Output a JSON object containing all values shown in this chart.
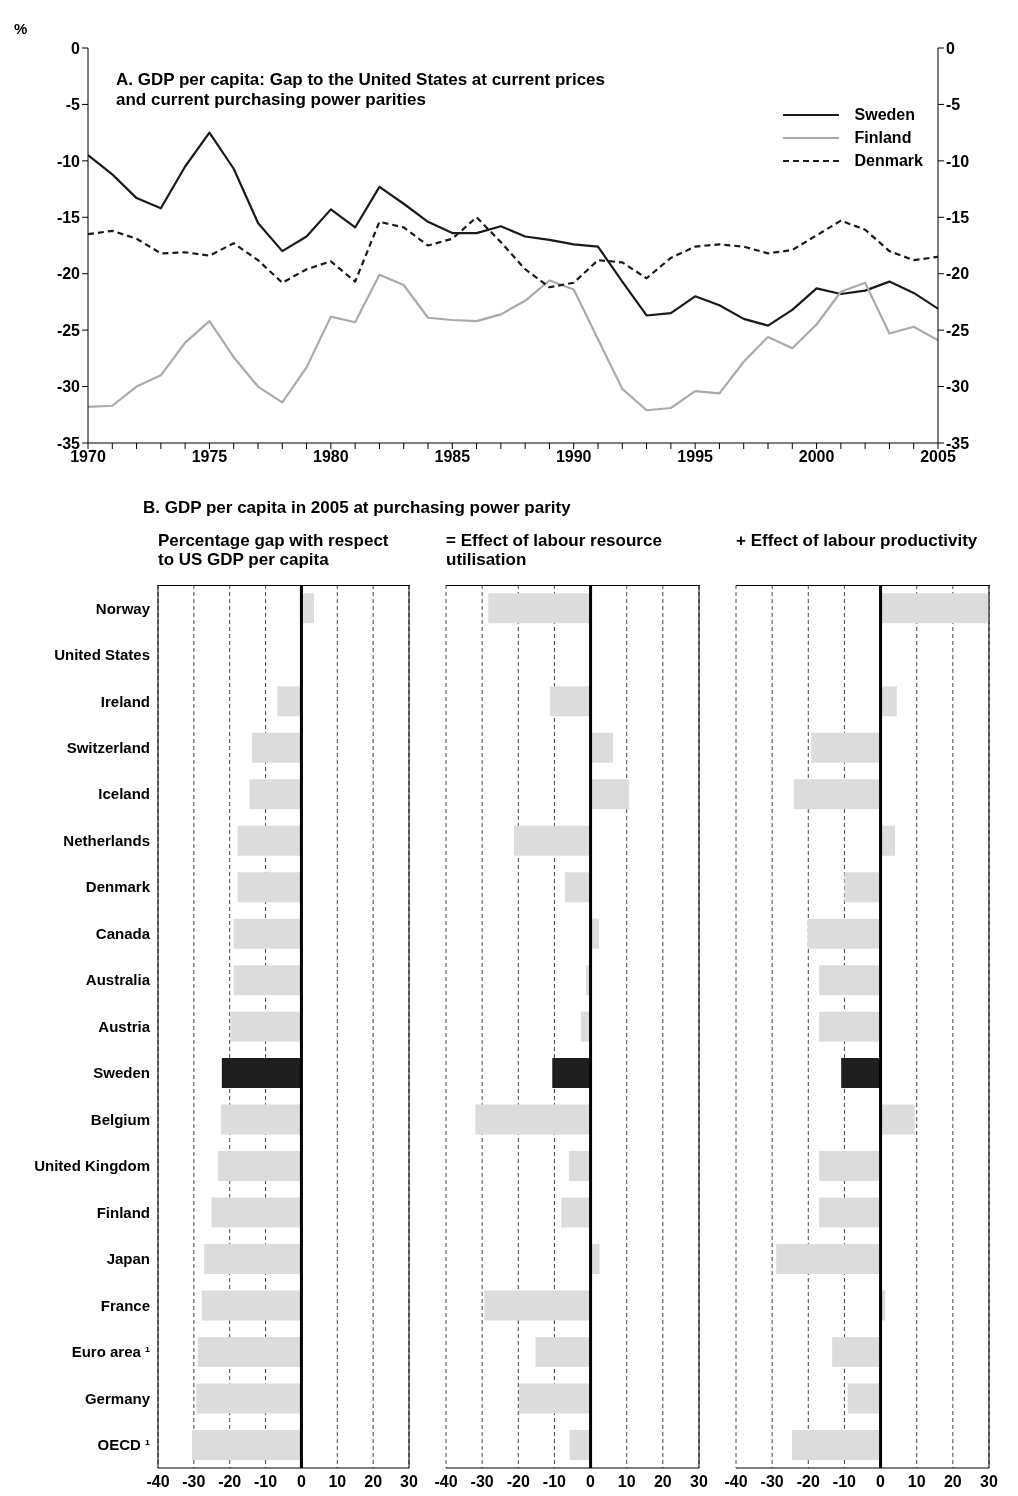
{
  "chart_data": [
    {
      "type": "line",
      "title": "A. GDP per capita: Gap to the United States at current prices and current purchasing power parities",
      "ylabel": "%",
      "x": [
        1970,
        1971,
        1972,
        1973,
        1974,
        1975,
        1976,
        1977,
        1978,
        1979,
        1980,
        1981,
        1982,
        1983,
        1984,
        1985,
        1986,
        1987,
        1988,
        1989,
        1990,
        1991,
        1992,
        1993,
        1994,
        1995,
        1996,
        1997,
        1998,
        1999,
        2000,
        2001,
        2002,
        2003,
        2004,
        2005
      ],
      "series": [
        {
          "name": "Sweden",
          "color": "#1a1a1a",
          "line_style": "solid",
          "values": [
            -9.5,
            -11.2,
            -13.3,
            -14.2,
            -10.5,
            -7.5,
            -10.7,
            -15.5,
            -18.0,
            -16.7,
            -14.3,
            -15.9,
            -12.3,
            -13.8,
            -15.4,
            -16.4,
            -16.4,
            -15.8,
            -16.7,
            -17.0,
            -17.4,
            -17.6,
            -20.7,
            -23.7,
            -23.5,
            -22.0,
            -22.8,
            -24.0,
            -24.6,
            -23.2,
            -21.3,
            -21.8,
            -21.5,
            -20.7,
            -21.7,
            -23.1
          ]
        },
        {
          "name": "Finland",
          "color": "#aaaaaa",
          "line_style": "solid",
          "values": [
            -31.8,
            -31.7,
            -30.0,
            -29.0,
            -26.1,
            -24.2,
            -27.4,
            -30.0,
            -31.4,
            -28.3,
            -23.8,
            -24.3,
            -20.1,
            -21.0,
            -23.9,
            -24.1,
            -24.2,
            -23.6,
            -22.4,
            -20.6,
            -21.4,
            -25.8,
            -30.2,
            -32.1,
            -31.9,
            -30.4,
            -30.6,
            -27.8,
            -25.6,
            -26.6,
            -24.5,
            -21.6,
            -20.8,
            -25.3,
            -24.7,
            -25.9
          ]
        },
        {
          "name": "Denmark",
          "color": "#1a1a1a",
          "line_style": "dashed",
          "values": [
            -16.5,
            -16.2,
            -16.9,
            -18.2,
            -18.1,
            -18.4,
            -17.3,
            -18.8,
            -20.8,
            -19.6,
            -18.9,
            -20.7,
            -15.4,
            -15.9,
            -17.5,
            -16.9,
            -15.0,
            -17.2,
            -19.6,
            -21.2,
            -20.8,
            -18.8,
            -19.0,
            -20.4,
            -18.6,
            -17.6,
            -17.4,
            -17.6,
            -18.2,
            -17.9,
            -16.6,
            -15.3,
            -16.1,
            -18.0,
            -18.8,
            -18.5
          ]
        }
      ],
      "xlim": [
        1970,
        2005
      ],
      "xticks": [
        1970,
        {
          "value": 1971,
          "label": null
        },
        {
          "value": 1972,
          "label": null
        },
        {
          "value": 1973,
          "label": null
        },
        {
          "value": 1974,
          "label": null
        },
        1975,
        {
          "value": 1976,
          "label": null
        },
        {
          "value": 1977,
          "label": null
        },
        {
          "value": 1978,
          "label": null
        },
        {
          "value": 1979,
          "label": null
        },
        1980,
        {
          "value": 1981,
          "label": null
        },
        {
          "value": 1982,
          "label": null
        },
        {
          "value": 1983,
          "label": null
        },
        {
          "value": 1984,
          "label": null
        },
        1985,
        {
          "value": 1986,
          "label": null
        },
        {
          "value": 1987,
          "label": null
        },
        {
          "value": 1988,
          "label": null
        },
        {
          "value": 1989,
          "label": null
        },
        1990,
        {
          "value": 1991,
          "label": null
        },
        {
          "value": 1992,
          "label": null
        },
        {
          "value": 1993,
          "label": null
        },
        {
          "value": 1994,
          "label": null
        },
        1995,
        {
          "value": 1996,
          "label": null
        },
        {
          "value": 1997,
          "label": null
        },
        {
          "value": 1998,
          "label": null
        },
        {
          "value": 1999,
          "label": null
        },
        2000,
        {
          "value": 2001,
          "label": null
        },
        {
          "value": 2002,
          "label": null
        },
        {
          "value": 2003,
          "label": null
        },
        {
          "value": 2004,
          "label": null
        },
        2005
      ],
      "ylim": [
        -35,
        0
      ],
      "yticks": [
        -35,
        -30,
        -25,
        -20,
        -15,
        -10,
        -5,
        0
      ],
      "y2lim": [
        -35,
        0
      ],
      "y2ticks": [
        -35,
        -30,
        -25,
        -20,
        -15,
        -10,
        -5,
        0
      ],
      "grid": false,
      "legend": "top right"
    },
    {
      "type": "bar",
      "orientation": "horizontal",
      "title": "B. GDP per capita in 2005 at purchasing power parity",
      "subtitle": "Percentage gap with respect to US GDP per capita",
      "categories": [
        "Norway",
        "United States",
        "Ireland",
        "Switzerland",
        "Iceland",
        "Netherlands",
        "Denmark",
        "Canada",
        "Australia",
        "Austria",
        "Sweden",
        "Belgium",
        "United Kingdom",
        "Finland",
        "Japan",
        "France",
        "Euro area ¹",
        "Germany",
        "OECD ¹"
      ],
      "values": [
        3.5,
        null,
        -6.7,
        -13.8,
        -14.5,
        -17.8,
        -17.8,
        -18.9,
        -18.9,
        -19.8,
        -22.2,
        -22.4,
        -23.3,
        -25.1,
        -27.1,
        -27.8,
        -28.9,
        -29.3,
        -30.5
      ],
      "colors": [
        "#dcdcdc",
        "#dcdcdc",
        "#dcdcdc",
        "#dcdcdc",
        "#dcdcdc",
        "#dcdcdc",
        "#dcdcdc",
        "#dcdcdc",
        "#dcdcdc",
        "#dcdcdc",
        "#1f1f1f",
        "#dcdcdc",
        "#dcdcdc",
        "#dcdcdc",
        "#dcdcdc",
        "#dcdcdc",
        "#dcdcdc",
        "#dcdcdc",
        "#dcdcdc"
      ],
      "xlim": [
        -40,
        30
      ],
      "xticks": [
        -40,
        -30,
        -20,
        -10,
        0,
        10,
        20,
        30
      ],
      "grid": "x",
      "ref_lines": [
        {
          "axis": "x",
          "value": 0,
          "color": "#000000",
          "line_style": "solid"
        }
      ]
    },
    {
      "type": "bar",
      "orientation": "horizontal",
      "title": "= Effect of labour resource utilisation",
      "categories": [
        null,
        null,
        null,
        null,
        null,
        null,
        null,
        null,
        null,
        null,
        null,
        null,
        null,
        null,
        null,
        null,
        null,
        null,
        null
      ],
      "values": [
        -28.3,
        null,
        -11.2,
        6.2,
        10.6,
        -21.2,
        -7.1,
        2.3,
        -1.3,
        -2.7,
        -10.6,
        -31.9,
        -6.0,
        -8.1,
        2.5,
        -29.4,
        -15.2,
        -19.8,
        -5.8
      ],
      "colors": [
        "#dcdcdc",
        "#dcdcdc",
        "#dcdcdc",
        "#dcdcdc",
        "#dcdcdc",
        "#dcdcdc",
        "#dcdcdc",
        "#dcdcdc",
        "#dcdcdc",
        "#dcdcdc",
        "#1f1f1f",
        "#dcdcdc",
        "#dcdcdc",
        "#dcdcdc",
        "#dcdcdc",
        "#dcdcdc",
        "#dcdcdc",
        "#dcdcdc",
        "#dcdcdc"
      ],
      "xlim": [
        -40,
        30
      ],
      "xticks": [
        -40,
        -30,
        -20,
        -10,
        0,
        10,
        20,
        30
      ],
      "grid": "x",
      "tick_labels": "x",
      "ref_lines": [
        {
          "axis": "x",
          "value": 0,
          "color": "#000000",
          "line_style": "solid"
        }
      ]
    },
    {
      "type": "bar",
      "orientation": "horizontal",
      "title": "+ Effect of labour productivity",
      "categories": [
        null,
        null,
        null,
        null,
        null,
        null,
        null,
        null,
        null,
        null,
        null,
        null,
        null,
        null,
        null,
        null,
        null,
        null,
        null
      ],
      "values": [
        30,
        null,
        4.5,
        -19.2,
        -24.0,
        4.0,
        -10.0,
        -20.2,
        -17.0,
        -17.0,
        -10.9,
        9.4,
        -17.0,
        -17.0,
        -28.9,
        1.3,
        -13.4,
        -9.1,
        -24.5
      ],
      "colors": [
        "#dcdcdc",
        "#dcdcdc",
        "#dcdcdc",
        "#dcdcdc",
        "#dcdcdc",
        "#dcdcdc",
        "#dcdcdc",
        "#dcdcdc",
        "#dcdcdc",
        "#dcdcdc",
        "#1f1f1f",
        "#dcdcdc",
        "#dcdcdc",
        "#dcdcdc",
        "#dcdcdc",
        "#dcdcdc",
        "#dcdcdc",
        "#dcdcdc",
        "#dcdcdc"
      ],
      "xlim": [
        -40,
        30
      ],
      "xticks": [
        -40,
        -30,
        -20,
        -10,
        0,
        10,
        20,
        30
      ],
      "grid": "x",
      "tick_labels": "x",
      "ref_lines": [
        {
          "axis": "x",
          "value": 0,
          "color": "#000000",
          "line_style": "solid"
        }
      ]
    }
  ]
}
